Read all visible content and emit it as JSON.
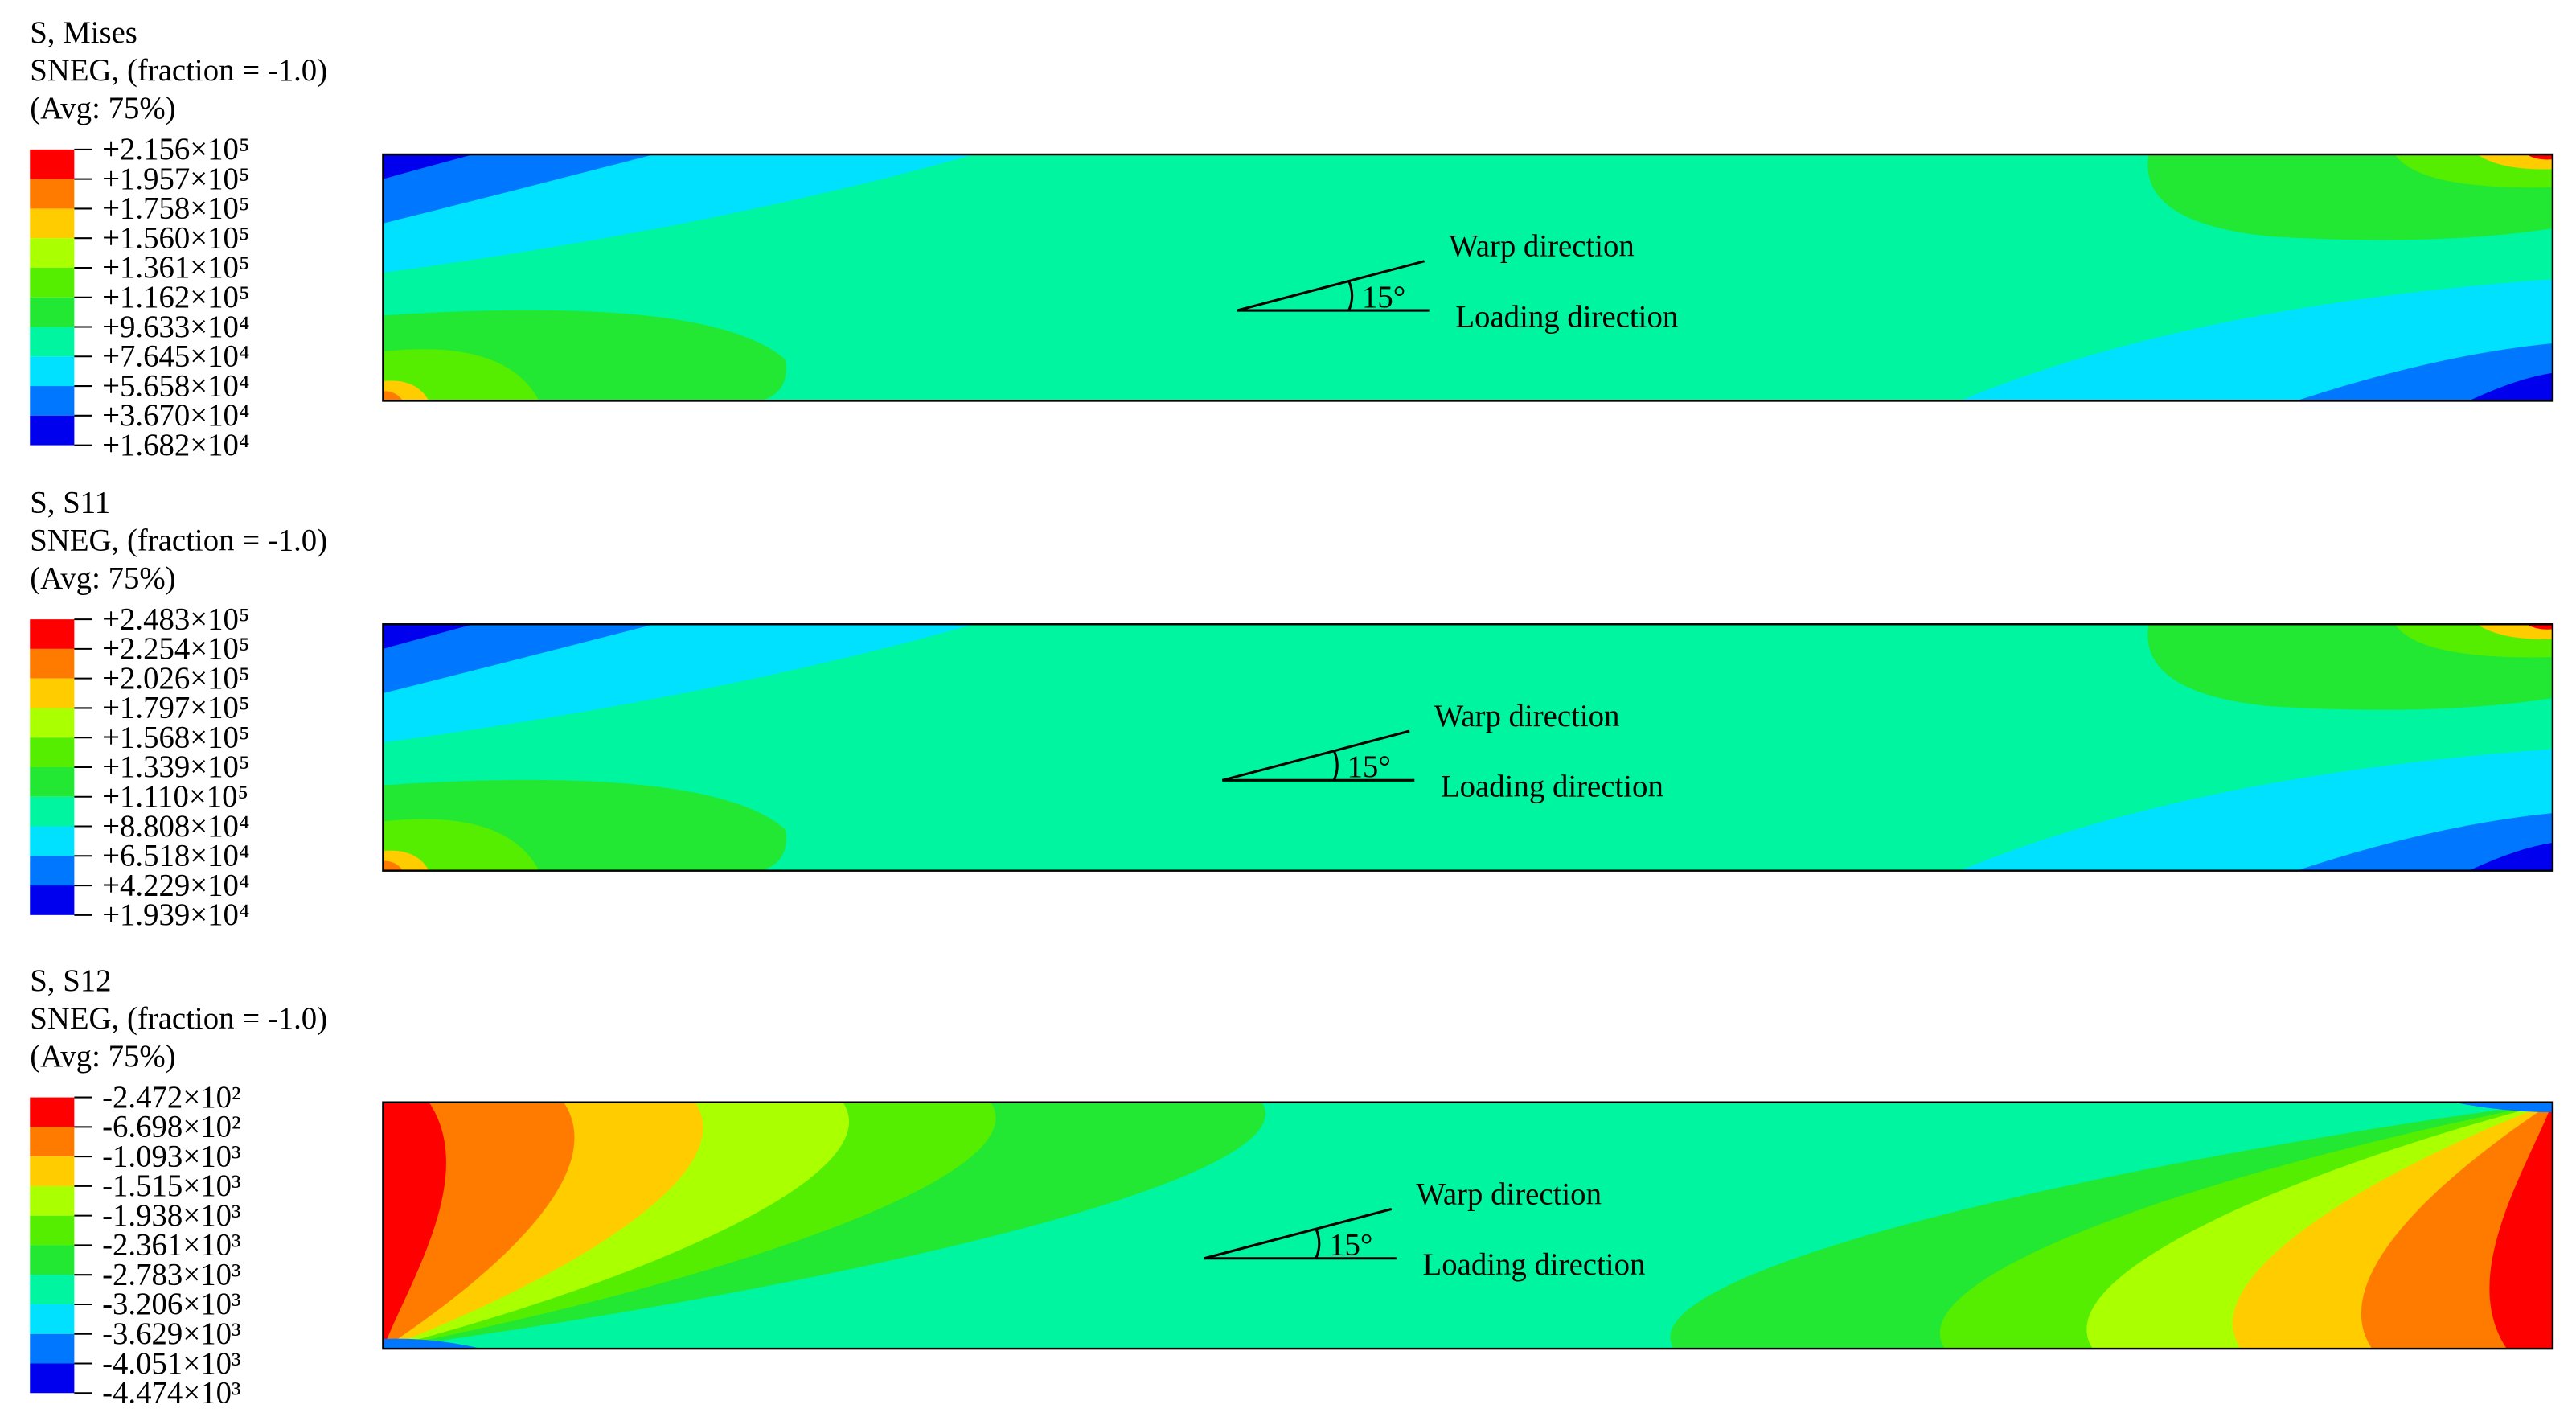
{
  "panels": [
    {
      "header": [
        "S, Mises",
        "SNEG, (fraction = -1.0)",
        "(Avg: 75%)"
      ],
      "legend": [
        "+2.156×10⁵",
        "+1.957×10⁵",
        "+1.758×10⁵",
        "+1.560×10⁵",
        "+1.361×10⁵",
        "+1.162×10⁵",
        "+9.633×10⁴",
        "+7.645×10⁴",
        "+5.658×10⁴",
        "+3.670×10⁴",
        "+1.682×10⁴"
      ],
      "annotations": {
        "warp": "Warp direction",
        "angle": "15°",
        "loading": "Loading direction"
      }
    },
    {
      "header": [
        "S, S11",
        "SNEG, (fraction = -1.0)",
        "(Avg: 75%)"
      ],
      "legend": [
        "+2.483×10⁵",
        "+2.254×10⁵",
        "+2.026×10⁵",
        "+1.797×10⁵",
        "+1.568×10⁵",
        "+1.339×10⁵",
        "+1.110×10⁵",
        "+8.808×10⁴",
        "+6.518×10⁴",
        "+4.229×10⁴",
        "+1.939×10⁴"
      ],
      "annotations": {
        "warp": "Warp direction",
        "angle": "15°",
        "loading": "Loading direction"
      }
    },
    {
      "header": [
        "S, S12",
        "SNEG, (fraction = -1.0)",
        "(Avg: 75%)"
      ],
      "legend": [
        "-2.472×10²",
        "-6.698×10²",
        "-1.093×10³",
        "-1.515×10³",
        "-1.938×10³",
        "-2.361×10³",
        "-2.783×10³",
        "-3.206×10³",
        "-3.629×10³",
        "-4.051×10³",
        "-4.474×10³"
      ],
      "annotations": {
        "warp": "Warp direction",
        "angle": "15°",
        "loading": "Loading direction"
      }
    }
  ]
}
